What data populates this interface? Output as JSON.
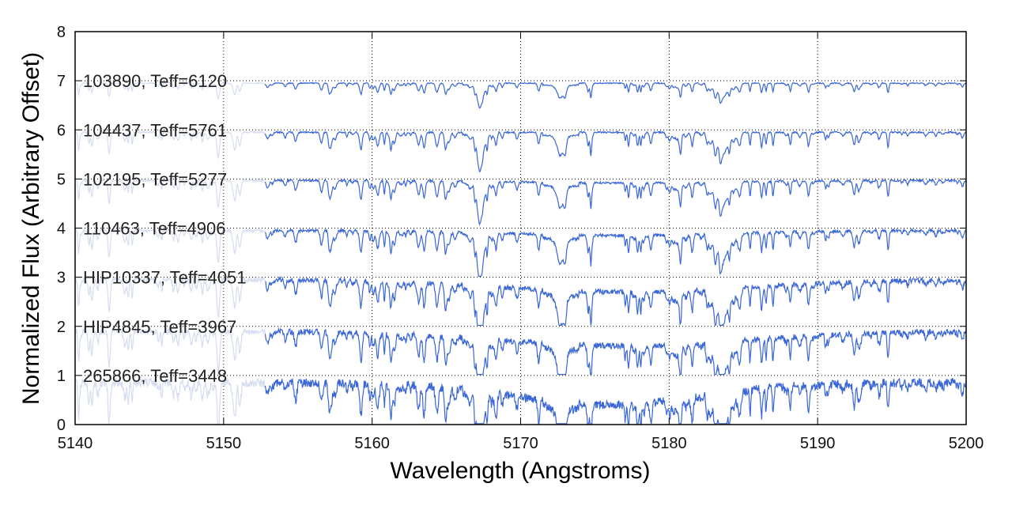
{
  "chart_data": {
    "type": "line",
    "title": "",
    "xlabel": "Wavelength (Angstroms)",
    "ylabel": "Normalized Flux (Arbitrary Offset)",
    "xlim": [
      5140,
      5200
    ],
    "ylim": [
      0,
      8
    ],
    "xticks": [
      5140,
      5150,
      5160,
      5170,
      5180,
      5190,
      5200
    ],
    "yticks": [
      0,
      1,
      2,
      3,
      4,
      5,
      6,
      7,
      8
    ],
    "grid": "dotted",
    "line_color": "#3a66d6",
    "faded_line_color": "#d6ddf0",
    "lines_at_mgb_triplet": [
      5167.3,
      5172.7,
      5183.6
    ],
    "series": [
      {
        "name": "103890, Teff=6120",
        "offset": 6,
        "continuum": 0.95,
        "depth_scale": 0.35,
        "noise": 0.01,
        "band_depression": 0.0,
        "band_center": 5177,
        "band_width": 10
      },
      {
        "name": "104437, Teff=5761",
        "offset": 5,
        "continuum": 0.95,
        "depth_scale": 0.55,
        "noise": 0.015,
        "band_depression": 0.0,
        "band_center": 5177,
        "band_width": 10
      },
      {
        "name": "102195, Teff=5277",
        "offset": 4,
        "continuum": 0.97,
        "depth_scale": 0.6,
        "noise": 0.02,
        "band_depression": 0.05,
        "band_center": 5177,
        "band_width": 10
      },
      {
        "name": "110463, Teff=4906",
        "offset": 3,
        "continuum": 0.95,
        "depth_scale": 0.7,
        "noise": 0.03,
        "band_depression": 0.1,
        "band_center": 5177,
        "band_width": 10
      },
      {
        "name": "HIP10337, Teff=4051",
        "offset": 2,
        "continuum": 0.95,
        "depth_scale": 0.85,
        "noise": 0.05,
        "band_depression": 0.25,
        "band_center": 5177,
        "band_width": 12
      },
      {
        "name": "HIP4845, Teff=3967",
        "offset": 1,
        "continuum": 0.9,
        "depth_scale": 0.9,
        "noise": 0.06,
        "band_depression": 0.3,
        "band_center": 5177,
        "band_width": 12
      },
      {
        "name": "265866, Teff=3448",
        "offset": 0,
        "continuum": 0.85,
        "depth_scale": 1.0,
        "noise": 0.09,
        "band_depression": 0.45,
        "band_center": 5176,
        "band_width": 9
      }
    ]
  }
}
